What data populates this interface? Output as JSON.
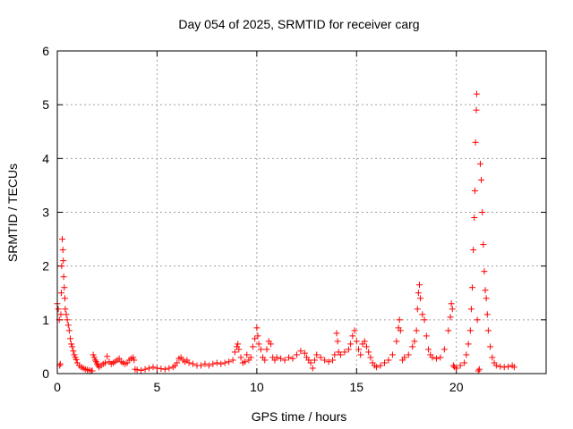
{
  "chart_data": {
    "type": "scatter",
    "title": "Day 054 of 2025, SRMTID for receiver carg",
    "xlabel": "GPS time / hours",
    "ylabel": "SRMTID / TECUs",
    "xlim": [
      0,
      24.5
    ],
    "ylim": [
      0,
      6
    ],
    "xticks": [
      0,
      5,
      10,
      15,
      20
    ],
    "yticks": [
      0,
      1,
      2,
      3,
      4,
      5,
      6
    ],
    "grid": true,
    "marker": "+",
    "color": "#ff0000",
    "series": [
      {
        "name": "SRMTID",
        "points": [
          [
            0.0,
            1.3
          ],
          [
            0.05,
            1.2
          ],
          [
            0.1,
            1.0
          ],
          [
            0.12,
            0.15
          ],
          [
            0.15,
            0.18
          ],
          [
            0.18,
            1.1
          ],
          [
            0.2,
            1.5
          ],
          [
            0.22,
            2.0
          ],
          [
            0.25,
            2.5
          ],
          [
            0.28,
            2.3
          ],
          [
            0.3,
            2.1
          ],
          [
            0.32,
            1.8
          ],
          [
            0.35,
            1.6
          ],
          [
            0.38,
            1.4
          ],
          [
            0.4,
            1.2
          ],
          [
            0.45,
            1.1
          ],
          [
            0.5,
            1.0
          ],
          [
            0.55,
            0.9
          ],
          [
            0.6,
            0.8
          ],
          [
            0.65,
            0.65
          ],
          [
            0.7,
            0.55
          ],
          [
            0.75,
            0.5
          ],
          [
            0.8,
            0.42
          ],
          [
            0.85,
            0.35
          ],
          [
            0.9,
            0.3
          ],
          [
            0.95,
            0.26
          ],
          [
            1.0,
            0.2
          ],
          [
            1.1,
            0.15
          ],
          [
            1.2,
            0.12
          ],
          [
            1.3,
            0.1
          ],
          [
            1.4,
            0.08
          ],
          [
            1.5,
            0.07
          ],
          [
            1.6,
            0.06
          ],
          [
            1.7,
            0.05
          ],
          [
            1.75,
            0.05
          ],
          [
            1.8,
            0.35
          ],
          [
            1.85,
            0.3
          ],
          [
            1.9,
            0.25
          ],
          [
            1.95,
            0.22
          ],
          [
            2.0,
            0.18
          ],
          [
            2.05,
            0.15
          ],
          [
            2.1,
            0.12
          ],
          [
            2.2,
            0.15
          ],
          [
            2.3,
            0.18
          ],
          [
            2.4,
            0.2
          ],
          [
            2.5,
            0.32
          ],
          [
            2.6,
            0.22
          ],
          [
            2.7,
            0.18
          ],
          [
            2.8,
            0.2
          ],
          [
            2.9,
            0.22
          ],
          [
            3.0,
            0.25
          ],
          [
            3.1,
            0.28
          ],
          [
            3.2,
            0.22
          ],
          [
            3.3,
            0.2
          ],
          [
            3.4,
            0.18
          ],
          [
            3.5,
            0.2
          ],
          [
            3.6,
            0.25
          ],
          [
            3.7,
            0.28
          ],
          [
            3.8,
            0.3
          ],
          [
            3.85,
            0.25
          ],
          [
            3.9,
            0.08
          ],
          [
            4.0,
            0.07
          ],
          [
            4.2,
            0.06
          ],
          [
            4.4,
            0.08
          ],
          [
            4.6,
            0.1
          ],
          [
            4.8,
            0.12
          ],
          [
            5.0,
            0.1
          ],
          [
            5.2,
            0.09
          ],
          [
            5.4,
            0.08
          ],
          [
            5.6,
            0.1
          ],
          [
            5.8,
            0.12
          ],
          [
            5.9,
            0.15
          ],
          [
            6.0,
            0.2
          ],
          [
            6.1,
            0.28
          ],
          [
            6.2,
            0.3
          ],
          [
            6.3,
            0.25
          ],
          [
            6.4,
            0.22
          ],
          [
            6.5,
            0.25
          ],
          [
            6.6,
            0.2
          ],
          [
            6.8,
            0.18
          ],
          [
            7.0,
            0.15
          ],
          [
            7.2,
            0.15
          ],
          [
            7.4,
            0.18
          ],
          [
            7.6,
            0.15
          ],
          [
            7.8,
            0.18
          ],
          [
            8.0,
            0.2
          ],
          [
            8.2,
            0.18
          ],
          [
            8.4,
            0.2
          ],
          [
            8.6,
            0.22
          ],
          [
            8.8,
            0.25
          ],
          [
            8.9,
            0.4
          ],
          [
            9.0,
            0.5
          ],
          [
            9.05,
            0.55
          ],
          [
            9.1,
            0.45
          ],
          [
            9.2,
            0.3
          ],
          [
            9.3,
            0.2
          ],
          [
            9.4,
            0.22
          ],
          [
            9.5,
            0.35
          ],
          [
            9.6,
            0.25
          ],
          [
            9.7,
            0.3
          ],
          [
            9.8,
            0.5
          ],
          [
            9.9,
            0.65
          ],
          [
            10.0,
            0.85
          ],
          [
            10.05,
            0.7
          ],
          [
            10.1,
            0.55
          ],
          [
            10.2,
            0.45
          ],
          [
            10.3,
            0.3
          ],
          [
            10.4,
            0.25
          ],
          [
            10.5,
            0.45
          ],
          [
            10.6,
            0.6
          ],
          [
            10.7,
            0.55
          ],
          [
            10.8,
            0.3
          ],
          [
            10.9,
            0.25
          ],
          [
            11.0,
            0.3
          ],
          [
            11.2,
            0.28
          ],
          [
            11.4,
            0.25
          ],
          [
            11.6,
            0.3
          ],
          [
            11.8,
            0.28
          ],
          [
            12.0,
            0.35
          ],
          [
            12.2,
            0.42
          ],
          [
            12.4,
            0.38
          ],
          [
            12.5,
            0.3
          ],
          [
            12.6,
            0.25
          ],
          [
            12.7,
            0.2
          ],
          [
            12.8,
            0.1
          ],
          [
            12.9,
            0.25
          ],
          [
            13.0,
            0.35
          ],
          [
            13.2,
            0.3
          ],
          [
            13.4,
            0.25
          ],
          [
            13.6,
            0.22
          ],
          [
            13.8,
            0.25
          ],
          [
            13.9,
            0.35
          ],
          [
            14.0,
            0.75
          ],
          [
            14.05,
            0.6
          ],
          [
            14.1,
            0.4
          ],
          [
            14.2,
            0.35
          ],
          [
            14.4,
            0.4
          ],
          [
            14.6,
            0.45
          ],
          [
            14.7,
            0.55
          ],
          [
            14.8,
            0.7
          ],
          [
            14.9,
            0.8
          ],
          [
            15.0,
            0.6
          ],
          [
            15.1,
            0.45
          ],
          [
            15.2,
            0.35
          ],
          [
            15.3,
            0.55
          ],
          [
            15.4,
            0.6
          ],
          [
            15.5,
            0.5
          ],
          [
            15.6,
            0.4
          ],
          [
            15.7,
            0.3
          ],
          [
            15.8,
            0.2
          ],
          [
            15.9,
            0.15
          ],
          [
            16.0,
            0.12
          ],
          [
            16.2,
            0.15
          ],
          [
            16.4,
            0.2
          ],
          [
            16.6,
            0.25
          ],
          [
            16.8,
            0.35
          ],
          [
            17.0,
            0.6
          ],
          [
            17.1,
            0.85
          ],
          [
            17.15,
            1.0
          ],
          [
            17.2,
            0.8
          ],
          [
            17.3,
            0.25
          ],
          [
            17.4,
            0.3
          ],
          [
            17.6,
            0.35
          ],
          [
            17.8,
            0.5
          ],
          [
            17.9,
            0.6
          ],
          [
            18.0,
            0.8
          ],
          [
            18.05,
            1.2
          ],
          [
            18.1,
            1.5
          ],
          [
            18.15,
            1.65
          ],
          [
            18.2,
            1.4
          ],
          [
            18.3,
            1.1
          ],
          [
            18.4,
            1.0
          ],
          [
            18.5,
            0.7
          ],
          [
            18.6,
            0.45
          ],
          [
            18.7,
            0.35
          ],
          [
            18.8,
            0.3
          ],
          [
            19.0,
            0.28
          ],
          [
            19.2,
            0.3
          ],
          [
            19.4,
            0.45
          ],
          [
            19.6,
            0.8
          ],
          [
            19.7,
            1.05
          ],
          [
            19.75,
            1.3
          ],
          [
            19.8,
            1.2
          ],
          [
            19.85,
            0.15
          ],
          [
            19.9,
            0.12
          ],
          [
            20.0,
            0.1
          ],
          [
            20.2,
            0.15
          ],
          [
            20.4,
            0.2
          ],
          [
            20.5,
            0.35
          ],
          [
            20.6,
            0.55
          ],
          [
            20.7,
            0.8
          ],
          [
            20.75,
            1.2
          ],
          [
            20.8,
            1.6
          ],
          [
            20.85,
            2.3
          ],
          [
            20.9,
            2.9
          ],
          [
            20.93,
            3.4
          ],
          [
            20.96,
            4.3
          ],
          [
            21.0,
            4.9
          ],
          [
            21.02,
            5.2
          ],
          [
            21.05,
            1.0
          ],
          [
            21.1,
            0.05
          ],
          [
            21.15,
            0.08
          ],
          [
            21.2,
            3.9
          ],
          [
            21.25,
            3.6
          ],
          [
            21.3,
            3.0
          ],
          [
            21.35,
            2.4
          ],
          [
            21.4,
            1.9
          ],
          [
            21.45,
            1.55
          ],
          [
            21.5,
            1.4
          ],
          [
            21.55,
            1.1
          ],
          [
            21.6,
            0.8
          ],
          [
            21.7,
            0.5
          ],
          [
            21.8,
            0.3
          ],
          [
            21.9,
            0.2
          ],
          [
            22.0,
            0.15
          ],
          [
            22.2,
            0.13
          ],
          [
            22.4,
            0.12
          ],
          [
            22.6,
            0.13
          ],
          [
            22.8,
            0.15
          ],
          [
            22.9,
            0.12
          ]
        ]
      }
    ]
  }
}
